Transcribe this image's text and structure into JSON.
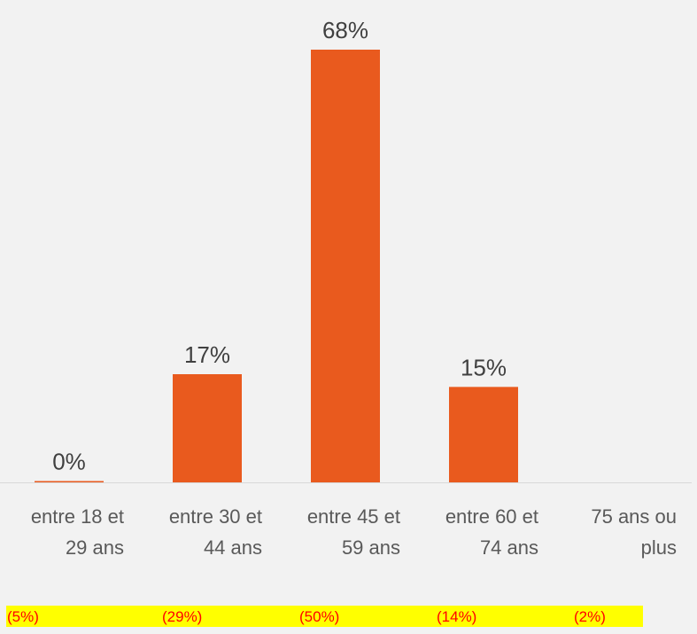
{
  "chart_data": {
    "type": "bar",
    "categories": [
      [
        "entre 18 et",
        "29 ans"
      ],
      [
        "entre 30 et",
        "44 ans"
      ],
      [
        "entre 45 et",
        "59 ans"
      ],
      [
        "entre 60 et",
        "74 ans"
      ],
      [
        "75 ans ou",
        "plus"
      ]
    ],
    "values": [
      0,
      17,
      68,
      15,
      null
    ],
    "value_labels": [
      "0%",
      "17%",
      "68%",
      "15%",
      ""
    ],
    "bottom_notes": [
      "(5%)",
      "(29%)",
      "(50%)",
      "(14%)",
      "(2%)"
    ],
    "ylim": [
      0,
      68
    ],
    "grid": false,
    "bar_color": "#e95a1e",
    "axis_color": "#d9d9d9",
    "note_highlight_color": "#ffff00",
    "note_text_color": "#ff0000"
  }
}
